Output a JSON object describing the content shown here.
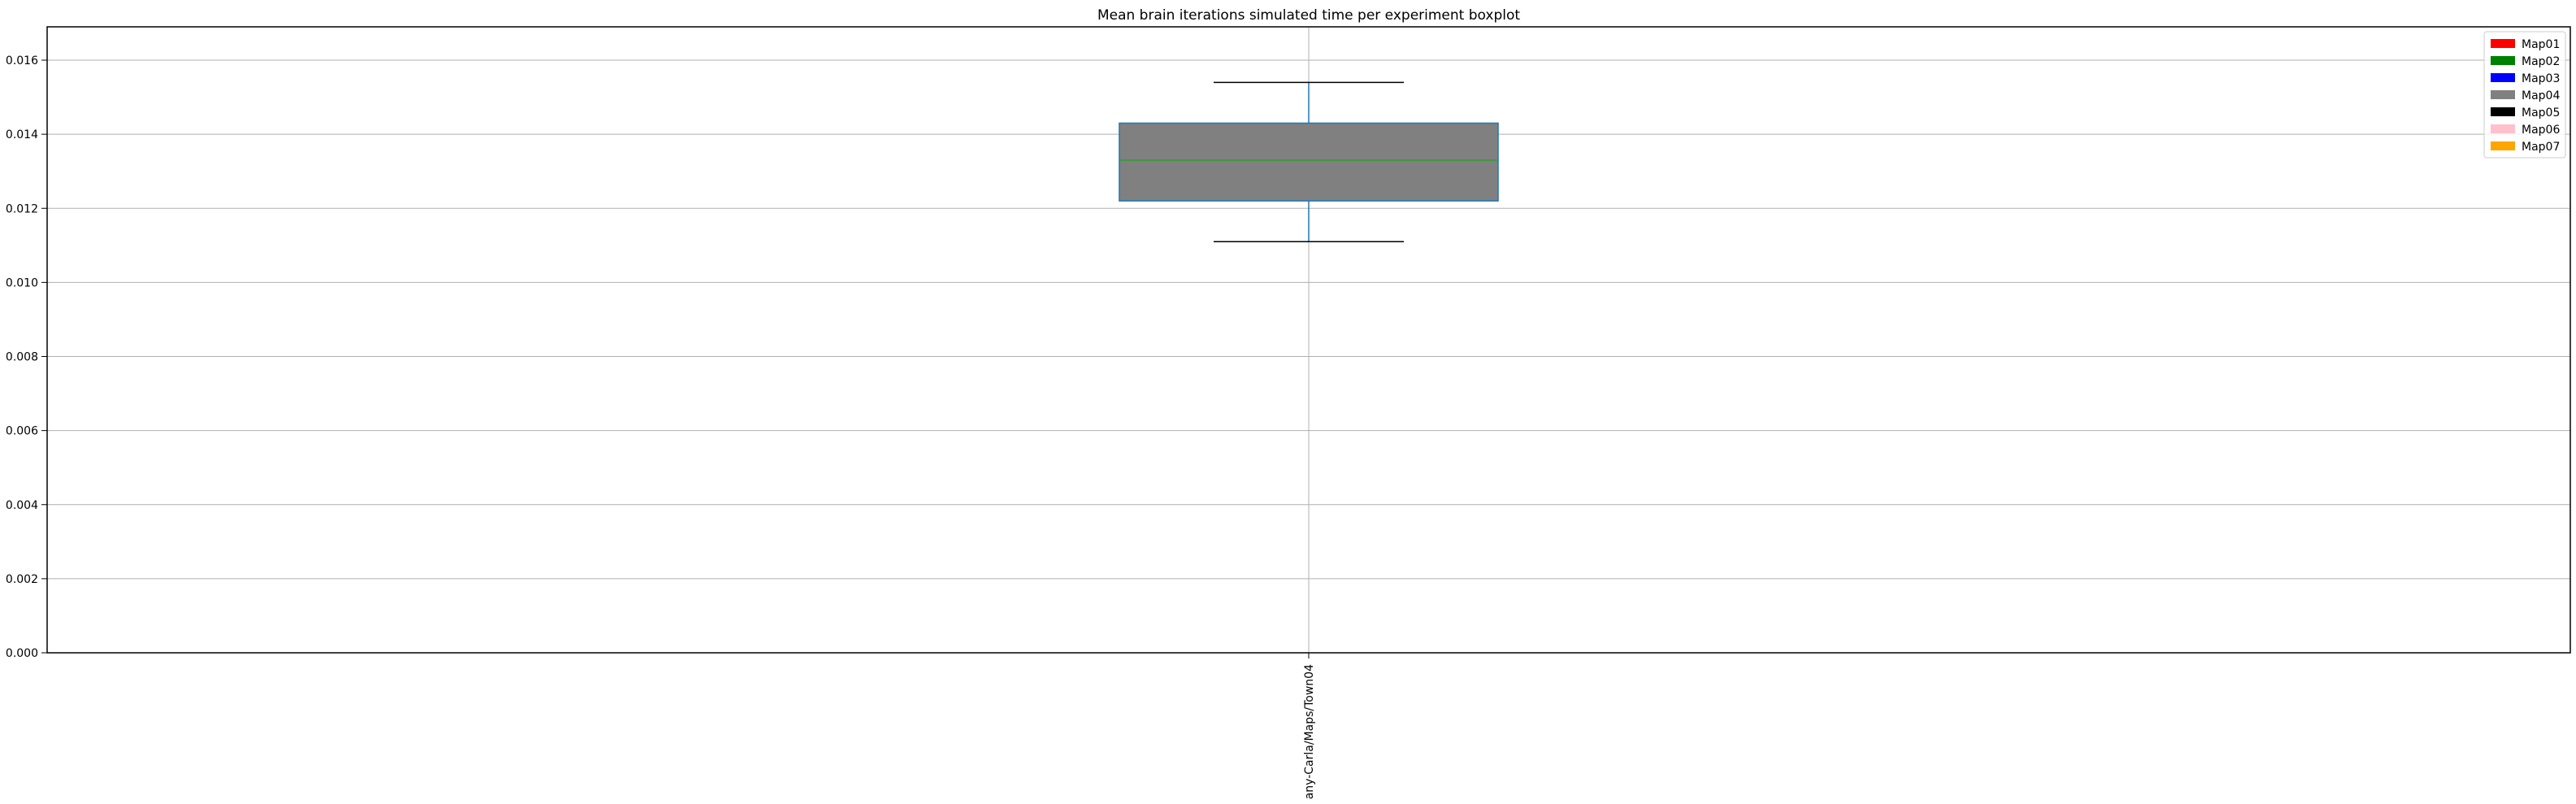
{
  "chart_data": {
    "type": "boxplot",
    "title": "Mean brain iterations simulated time per experiment boxplot",
    "xlabel": "",
    "ylabel": "",
    "ylim": [
      0,
      0.0169
    ],
    "yticks": [
      "0.000",
      "0.002",
      "0.004",
      "0.006",
      "0.008",
      "0.010",
      "0.012",
      "0.014",
      "0.016"
    ],
    "ytick_values": [
      0,
      0.002,
      0.004,
      0.006,
      0.008,
      0.01,
      0.012,
      0.014,
      0.016
    ],
    "grid": true,
    "categories": [
      "any-Carla/Maps/Town04"
    ],
    "boxes": [
      {
        "category": "any-Carla/Maps/Town04",
        "whisker_low": 0.0111,
        "q1": 0.0122,
        "median": 0.0133,
        "q3": 0.0143,
        "whisker_high": 0.0154,
        "color": "#808080"
      }
    ],
    "legend": {
      "placement": "top-right",
      "entries": [
        {
          "label": "Map01",
          "color": "#ff0000"
        },
        {
          "label": "Map02",
          "color": "#008000"
        },
        {
          "label": "Map03",
          "color": "#0000ff"
        },
        {
          "label": "Map04",
          "color": "#808080"
        },
        {
          "label": "Map05",
          "color": "#000000"
        },
        {
          "label": "Map06",
          "color": "#ffc0cb"
        },
        {
          "label": "Map07",
          "color": "#ffa500"
        }
      ]
    },
    "colors": {
      "box_edge": "#1f77b4",
      "median_line": "#2ca02c",
      "whisker_cap": "#000000",
      "grid": "#b0b0b0"
    }
  }
}
